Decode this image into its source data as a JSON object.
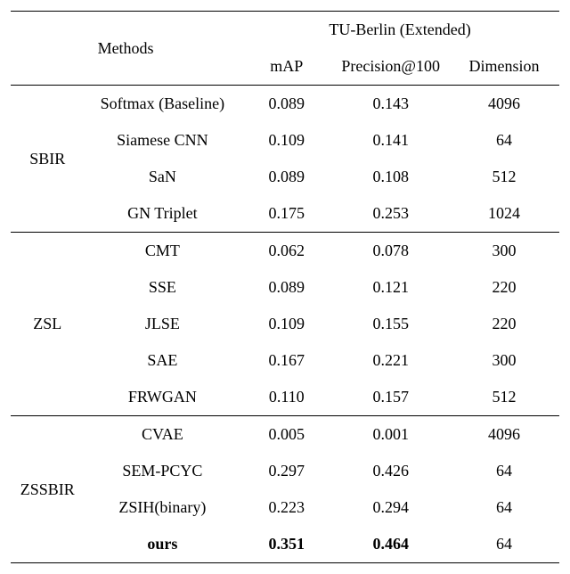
{
  "headers": {
    "methods": "Methods",
    "dataset": "TU-Berlin (Extended)",
    "map": "mAP",
    "precision": "Precision@100",
    "dimension": "Dimension"
  },
  "groups": [
    {
      "name": "SBIR",
      "rows": [
        {
          "method": "Softmax (Baseline)",
          "map": "0.089",
          "precision": "0.143",
          "dimension": "4096",
          "bold": false
        },
        {
          "method": "Siamese CNN",
          "map": "0.109",
          "precision": "0.141",
          "dimension": "64",
          "bold": false
        },
        {
          "method": "SaN",
          "map": "0.089",
          "precision": "0.108",
          "dimension": "512",
          "bold": false
        },
        {
          "method": "GN Triplet",
          "map": "0.175",
          "precision": "0.253",
          "dimension": "1024",
          "bold": false
        }
      ]
    },
    {
      "name": "ZSL",
      "rows": [
        {
          "method": "CMT",
          "map": "0.062",
          "precision": "0.078",
          "dimension": "300",
          "bold": false
        },
        {
          "method": "SSE",
          "map": "0.089",
          "precision": "0.121",
          "dimension": "220",
          "bold": false
        },
        {
          "method": "JLSE",
          "map": "0.109",
          "precision": "0.155",
          "dimension": "220",
          "bold": false
        },
        {
          "method": "SAE",
          "map": "0.167",
          "precision": "0.221",
          "dimension": "300",
          "bold": false
        },
        {
          "method": "FRWGAN",
          "map": "0.110",
          "precision": "0.157",
          "dimension": "512",
          "bold": false
        }
      ]
    },
    {
      "name": "ZSSBIR",
      "rows": [
        {
          "method": "CVAE",
          "map": "0.005",
          "precision": "0.001",
          "dimension": "4096",
          "bold": false
        },
        {
          "method": "SEM-PCYC",
          "map": "0.297",
          "precision": "0.426",
          "dimension": "64",
          "bold": false
        },
        {
          "method": "ZSIH(binary)",
          "map": "0.223",
          "precision": "0.294",
          "dimension": "64",
          "bold": false
        },
        {
          "method": "ours",
          "map": "0.351",
          "precision": "0.464",
          "dimension": "64",
          "bold": true
        }
      ]
    }
  ],
  "styling": {
    "background_color": "#ffffff",
    "text_color": "#000000",
    "border_color": "#000000",
    "font_family": "Times New Roman",
    "font_size_pt": 18
  }
}
